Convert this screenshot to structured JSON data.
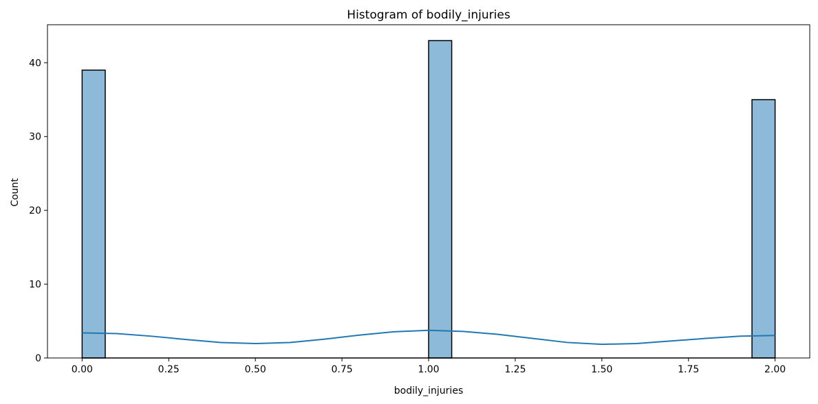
{
  "chart_data": {
    "type": "bar",
    "subtype": "histogram",
    "title": "Histogram of bodily_injuries",
    "xlabel": "bodily_injuries",
    "ylabel": "Count",
    "xlim": [
      -0.1,
      2.1
    ],
    "ylim": [
      0,
      45.15
    ],
    "xticks": [
      0.0,
      0.25,
      0.5,
      0.75,
      1.0,
      1.25,
      1.5,
      1.75,
      2.0
    ],
    "xtick_labels": [
      "0.00",
      "0.25",
      "0.50",
      "0.75",
      "1.00",
      "1.25",
      "1.50",
      "1.75",
      "2.00"
    ],
    "yticks": [
      0,
      10,
      20,
      30,
      40
    ],
    "ytick_labels": [
      "0",
      "10",
      "20",
      "30",
      "40"
    ],
    "bin_width": 0.0667,
    "bins": [
      {
        "start": 0.0,
        "end": 0.0667,
        "count": 39
      },
      {
        "start": 1.0,
        "end": 1.0667,
        "count": 43
      },
      {
        "start": 1.9333,
        "end": 2.0,
        "count": 35
      }
    ],
    "kde": {
      "x": [
        0.0,
        0.1,
        0.2,
        0.3,
        0.4,
        0.5,
        0.6,
        0.7,
        0.8,
        0.9,
        1.0,
        1.1,
        1.2,
        1.3,
        1.4,
        1.5,
        1.6,
        1.7,
        1.8,
        1.9,
        2.0
      ],
      "y": [
        3.4,
        3.3,
        2.95,
        2.5,
        2.1,
        1.95,
        2.1,
        2.55,
        3.1,
        3.55,
        3.75,
        3.6,
        3.2,
        2.65,
        2.1,
        1.85,
        1.95,
        2.3,
        2.65,
        2.95,
        3.05
      ]
    },
    "grid": false,
    "bar_fill": "#8ebad9",
    "bar_edge": "#000000",
    "line_color": "#1f77b4"
  }
}
